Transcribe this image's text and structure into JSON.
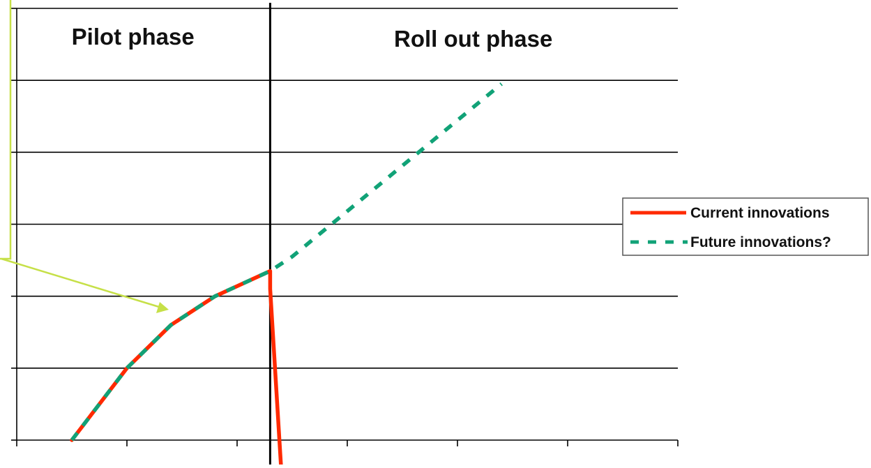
{
  "chart_data": {
    "type": "line",
    "title": "",
    "xlabel": "",
    "ylabel": "",
    "x_range": [
      0,
      6
    ],
    "y_range": [
      0,
      6
    ],
    "grid": true,
    "phase_divider_x": 2.3,
    "phases": [
      {
        "label": "Pilot phase"
      },
      {
        "label": "Roll out phase"
      }
    ],
    "legend_position": "right",
    "colors": {
      "current": "#ff2a00",
      "future": "#11a277",
      "annotation_arrow": "#c6e048",
      "grid": "#000000"
    },
    "series": [
      {
        "name": "Current innovations",
        "style": "solid",
        "points": [
          [
            0.5,
            0.0
          ],
          [
            1.0,
            1.0
          ],
          [
            1.4,
            1.6
          ],
          [
            1.8,
            2.0
          ],
          [
            2.3,
            2.35
          ],
          [
            2.3,
            2.1
          ],
          [
            2.4,
            -0.4
          ]
        ]
      },
      {
        "name": "Future innovations?",
        "style": "dashed",
        "points": [
          [
            0.5,
            0.0
          ],
          [
            1.0,
            1.0
          ],
          [
            1.4,
            1.6
          ],
          [
            1.8,
            2.0
          ],
          [
            2.3,
            2.35
          ],
          [
            2.5,
            2.55
          ],
          [
            4.4,
            4.95
          ]
        ]
      }
    ]
  }
}
